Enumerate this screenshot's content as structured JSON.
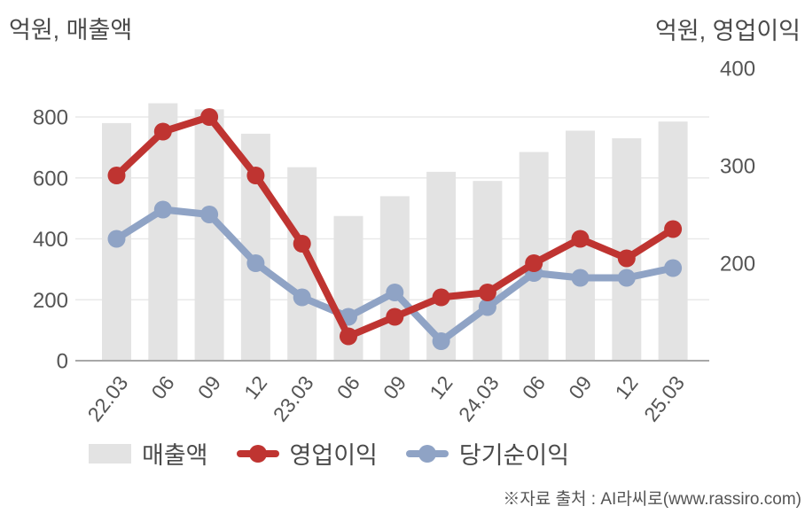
{
  "axis_titles": {
    "left": "억원, 매출액",
    "right": "억원, 영업이익"
  },
  "source_note": "※자료 출처 : AI라씨로(www.rassiro.com)",
  "colors": {
    "bar": "#e3e3e3",
    "operating_profit": "#bf3431",
    "net_profit": "#8fa3c5",
    "grid": "#e9e9e9",
    "axis_line": "#a8a8a8",
    "tick_text": "#555555",
    "title_text": "#4a4a4a"
  },
  "legend": [
    {
      "label": "매출액",
      "marker": "bar-swatch",
      "color_key": "bar"
    },
    {
      "label": "영업이익",
      "marker": "line-dot",
      "color_key": "operating_profit"
    },
    {
      "label": "당기순이익",
      "marker": "line-dot",
      "color_key": "net_profit"
    }
  ],
  "chart_data": {
    "type": "bar+line combo, dual y-axis",
    "categories": [
      "22.03",
      "06",
      "09",
      "12",
      "23.03",
      "06",
      "09",
      "12",
      "24.03",
      "06",
      "09",
      "12",
      "25.03"
    ],
    "series": [
      {
        "id": "revenue",
        "name": "매출액",
        "type": "bar",
        "axis": "left",
        "color_key": "bar",
        "z": 0,
        "values": [
          780,
          845,
          825,
          745,
          635,
          475,
          540,
          620,
          590,
          685,
          755,
          730,
          785
        ]
      },
      {
        "id": "net-profit",
        "name": "당기순이익",
        "type": "line",
        "axis": "right",
        "color_key": "net_profit",
        "z": 1,
        "values": [
          225,
          255,
          250,
          200,
          165,
          145,
          170,
          120,
          155,
          190,
          185,
          185,
          195
        ]
      },
      {
        "id": "operating-profit",
        "name": "영업이익",
        "type": "line",
        "axis": "right",
        "color_key": "operating_profit",
        "z": 2,
        "values": [
          290,
          335,
          350,
          290,
          220,
          125,
          145,
          165,
          170,
          200,
          225,
          205,
          235
        ]
      }
    ],
    "left_axis": {
      "unit": "억원",
      "label": "매출액",
      "ticks": [
        0,
        200,
        400,
        600,
        800
      ],
      "range": [
        0,
        960
      ],
      "grid": true
    },
    "right_axis": {
      "unit": "억원",
      "label": "영업이익",
      "ticks": [
        200,
        300,
        400
      ],
      "range": [
        100,
        400
      ],
      "grid": false
    },
    "legend_position": "bottom",
    "x_tick_rotation_deg": -52
  }
}
